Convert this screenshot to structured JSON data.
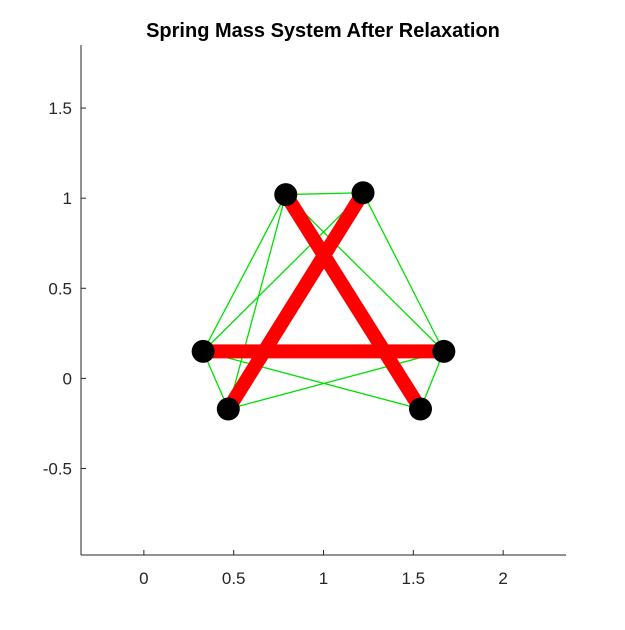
{
  "chart_data": {
    "type": "scatter",
    "title": "Spring Mass System After Relaxation",
    "xlabel": "",
    "ylabel": "",
    "xlim": [
      -0.35,
      2.35
    ],
    "ylim": [
      -0.98,
      1.85
    ],
    "xticks": [
      0,
      0.5,
      1,
      1.5,
      2
    ],
    "xtick_labels": [
      "0",
      "0.5",
      "1",
      "1.5",
      "2"
    ],
    "yticks": [
      -0.5,
      0,
      0.5,
      1,
      1.5
    ],
    "ytick_labels": [
      "-0.5",
      "0",
      "0.5",
      "1",
      "1.5"
    ],
    "grid": false,
    "masses": [
      {
        "x": 0.79,
        "y": 1.02
      },
      {
        "x": 1.22,
        "y": 1.03
      },
      {
        "x": 0.33,
        "y": 0.15
      },
      {
        "x": 1.67,
        "y": 0.15
      },
      {
        "x": 0.47,
        "y": -0.17
      },
      {
        "x": 1.54,
        "y": -0.17
      }
    ],
    "thick_springs": [
      [
        0,
        5
      ],
      [
        1,
        4
      ],
      [
        2,
        3
      ]
    ],
    "thin_springs": [
      [
        0,
        1
      ],
      [
        0,
        2
      ],
      [
        0,
        3
      ],
      [
        1,
        4
      ],
      [
        1,
        3
      ],
      [
        2,
        4
      ],
      [
        2,
        5
      ],
      [
        3,
        4
      ],
      [
        3,
        5
      ],
      [
        0,
        4
      ],
      [
        2,
        1
      ]
    ],
    "colors": {
      "mass": "#000000",
      "thick_spring": "#ff0000",
      "thin_spring": "#00e000",
      "axis": "#262626"
    }
  }
}
